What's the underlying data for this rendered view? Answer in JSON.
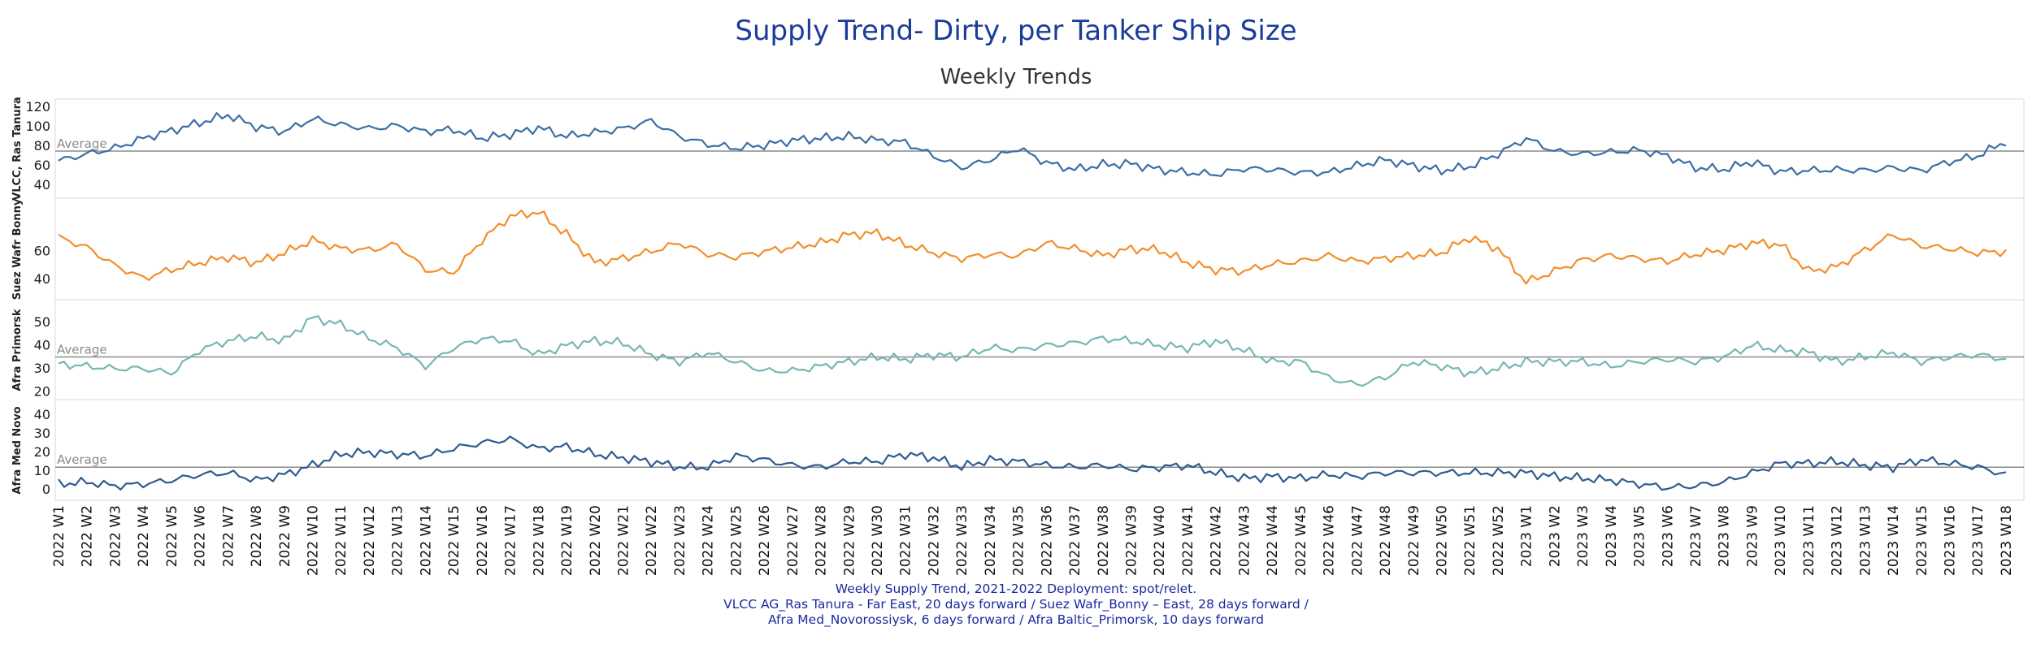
{
  "title": "Supply Trend- Dirty, per Tanker Ship Size",
  "subtitle": "Weekly Trends",
  "footer": [
    "Weekly Supply Trend, 2021-2022 Deployment: spot/relet.",
    "VLCC AG_Ras Tanura - Far East, 20 days forward / Suez Wafr_Bonny – East, 28 days forward /",
    "Afra Med_Novorossiysk, 6 days forward / Afra Baltic_Primorsk, 10 days forward"
  ],
  "chart_data": {
    "type": "line",
    "title": "Supply Trend- Dirty, per Tanker Ship Size",
    "subtitle": "Weekly Trends",
    "x_categories": [
      "2022 W1",
      "2022 W2",
      "2022 W3",
      "2022 W4",
      "2022 W5",
      "2022 W6",
      "2022 W7",
      "2022 W8",
      "2022 W9",
      "2022 W10",
      "2022 W11",
      "2022 W12",
      "2022 W13",
      "2022 W14",
      "2022 W15",
      "2022 W16",
      "2022 W17",
      "2022 W18",
      "2022 W19",
      "2022 W20",
      "2022 W21",
      "2022 W22",
      "2022 W23",
      "2022 W24",
      "2022 W25",
      "2022 W26",
      "2022 W27",
      "2022 W28",
      "2022 W29",
      "2022 W30",
      "2022 W31",
      "2022 W32",
      "2022 W33",
      "2022 W34",
      "2022 W35",
      "2022 W36",
      "2022 W37",
      "2022 W38",
      "2022 W39",
      "2022 W40",
      "2022 W41",
      "2022 W42",
      "2022 W43",
      "2022 W44",
      "2022 W45",
      "2022 W46",
      "2022 W47",
      "2022 W48",
      "2022 W49",
      "2022 W50",
      "2022 W51",
      "2022 W52",
      "2023 W1",
      "2023 W2",
      "2023 W3",
      "2023 W4",
      "2023 W5",
      "2023 W6",
      "2023 W7",
      "2023 W8",
      "2023 W9",
      "2023 W10",
      "2023 W11",
      "2023 W12",
      "2023 W13",
      "2023 W14",
      "2023 W15",
      "2023 W16",
      "2023 W17",
      "2023 W18"
    ],
    "panels": [
      {
        "name": "VLCC, Ras Tanura",
        "color": "#3a6ea5",
        "yticks": [
          40,
          60,
          80,
          100,
          120
        ],
        "ylim": [
          30,
          125
        ],
        "average": 75,
        "average_label": "Average",
        "values": [
          65,
          72,
          78,
          88,
          96,
          104,
          112,
          100,
          95,
          108,
          102,
          98,
          101,
          95,
          97,
          88,
          92,
          99,
          90,
          94,
          98,
          106,
          90,
          82,
          78,
          81,
          86,
          88,
          90,
          86,
          84,
          70,
          58,
          66,
          78,
          63,
          56,
          61,
          62,
          56,
          53,
          51,
          57,
          56,
          53,
          53,
          60,
          66,
          60,
          55,
          59,
          72,
          88,
          75,
          72,
          74,
          76,
          70,
          58,
          56,
          64,
          54,
          55,
          56,
          55,
          58,
          55,
          64,
          70,
          85
        ]
      },
      {
        "name": "Suez Wafr Bonny",
        "color": "#f28e2b",
        "yticks": [
          40,
          60
        ],
        "ylim": [
          28,
          95
        ],
        "average": null,
        "average_label": "",
        "values": [
          70,
          63,
          50,
          41,
          47,
          52,
          56,
          52,
          59,
          68,
          62,
          61,
          65,
          47,
          45,
          68,
          85,
          88,
          72,
          52,
          55,
          60,
          66,
          58,
          56,
          60,
          63,
          66,
          72,
          73,
          65,
          59,
          55,
          58,
          57,
          66,
          62,
          57,
          62,
          61,
          52,
          47,
          46,
          51,
          53,
          57,
          53,
          55,
          57,
          59,
          70,
          62,
          38,
          46,
          54,
          57,
          55,
          53,
          58,
          61,
          66,
          65,
          46,
          49,
          61,
          72,
          64,
          62,
          59,
          60
        ]
      },
      {
        "name": "Afra Primorsk",
        "color": "#76b7b2",
        "yticks": [
          20,
          30,
          40,
          50
        ],
        "ylim": [
          18,
          58
        ],
        "average": 35,
        "average_label": "Average",
        "values": [
          32,
          31,
          30,
          30,
          28,
          38,
          42,
          44,
          42,
          52,
          49,
          43,
          39,
          31,
          39,
          43,
          42,
          36,
          40,
          42,
          41,
          36,
          33,
          37,
          33,
          29,
          29,
          31,
          33,
          35,
          34,
          36,
          35,
          39,
          38,
          40,
          41,
          43,
          42,
          40,
          39,
          42,
          38,
          33,
          33,
          26,
          23,
          26,
          33,
          31,
          28,
          30,
          33,
          33,
          33,
          31,
          33,
          34,
          33,
          35,
          40,
          38,
          37,
          33,
          35,
          37,
          33,
          35,
          36,
          34
        ]
      },
      {
        "name": "Afra Med Novo",
        "color": "#2f5b91",
        "yticks": [
          0,
          10,
          20,
          30,
          40
        ],
        "ylim": [
          -4,
          46
        ],
        "average": 12,
        "average_label": "Average",
        "values": [
          3,
          4,
          2,
          3,
          5,
          8,
          9,
          5,
          8,
          13,
          19,
          20,
          19,
          18,
          22,
          25,
          27,
          22,
          23,
          19,
          17,
          15,
          12,
          12,
          18,
          16,
          13,
          12,
          15,
          15,
          19,
          17,
          12,
          16,
          15,
          13,
          12,
          13,
          11,
          12,
          13,
          9,
          6,
          7,
          6,
          8,
          7,
          9,
          9,
          9,
          9,
          9,
          9,
          7,
          6,
          5,
          3,
          1,
          2,
          4,
          9,
          14,
          14,
          15,
          13,
          12,
          16,
          14,
          12,
          8
        ]
      }
    ]
  }
}
